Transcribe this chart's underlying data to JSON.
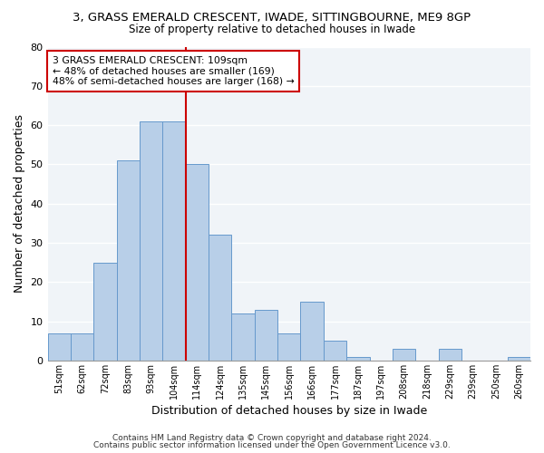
{
  "title": "3, GRASS EMERALD CRESCENT, IWADE, SITTINGBOURNE, ME9 8GP",
  "subtitle": "Size of property relative to detached houses in Iwade",
  "xlabel": "Distribution of detached houses by size in Iwade",
  "ylabel": "Number of detached properties",
  "bar_labels": [
    "51sqm",
    "62sqm",
    "72sqm",
    "83sqm",
    "93sqm",
    "104sqm",
    "114sqm",
    "124sqm",
    "135sqm",
    "145sqm",
    "156sqm",
    "166sqm",
    "177sqm",
    "187sqm",
    "197sqm",
    "208sqm",
    "218sqm",
    "229sqm",
    "239sqm",
    "250sqm",
    "260sqm"
  ],
  "bar_heights": [
    7,
    7,
    25,
    51,
    61,
    61,
    50,
    32,
    12,
    13,
    7,
    15,
    5,
    1,
    0,
    3,
    0,
    3,
    0,
    0,
    1
  ],
  "bar_color": "#b8cfe8",
  "bar_edge_color": "#6699cc",
  "vline_x_idx": 6,
  "vline_color": "#cc0000",
  "annotation_text": "3 GRASS EMERALD CRESCENT: 109sqm\n← 48% of detached houses are smaller (169)\n48% of semi-detached houses are larger (168) →",
  "annotation_box_color": "#ffffff",
  "annotation_box_edge_color": "#cc0000",
  "ylim": [
    0,
    80
  ],
  "yticks": [
    0,
    10,
    20,
    30,
    40,
    50,
    60,
    70,
    80
  ],
  "footer1": "Contains HM Land Registry data © Crown copyright and database right 2024.",
  "footer2": "Contains public sector information licensed under the Open Government Licence v3.0.",
  "background_color": "#ffffff",
  "plot_bg_color": "#f0f4f8",
  "grid_color": "#ffffff"
}
